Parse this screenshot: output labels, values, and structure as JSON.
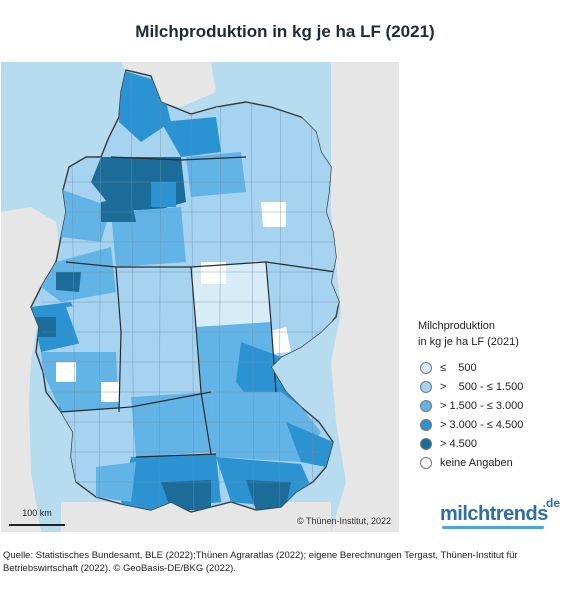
{
  "title": "Milchproduktion in kg je ha LF (2021)",
  "map": {
    "copyright": "© Thünen-Institut, 2022",
    "scale_label": "100 km",
    "colors": {
      "water": "#b7dbef",
      "neighbor_land": "#e6e6e6",
      "border": "#3a3a3a"
    }
  },
  "legend": {
    "title_line1": "Milchproduktion",
    "title_line2": "in kg je ha LF (2021)",
    "items": [
      {
        "label": "≤    500",
        "color": "#d8ecf8"
      },
      {
        "label": ">    500 - ≤ 1.500",
        "color": "#a6d3f0"
      },
      {
        "label": "> 1.500 - ≤ 3.000",
        "color": "#63b4e6"
      },
      {
        "label": "> 3.000 - ≤ 4.500",
        "color": "#2c93d3"
      },
      {
        "label": "> 4.500",
        "color": "#1b6c98"
      },
      {
        "label": "keine Angaben",
        "color": "#ffffff"
      }
    ]
  },
  "logo": {
    "text": "milchtrends",
    "sup": ".de"
  },
  "source": {
    "line1": "Quelle: Statistisches Bundesamt, BLE (2022);Thünen Agraratlas (2022); eigene Berechnungen Tergast, Thünen-Institut für",
    "line2": "Betriebswirtschaft (2022). © GeoBasis-DE/BKG (2022)."
  }
}
